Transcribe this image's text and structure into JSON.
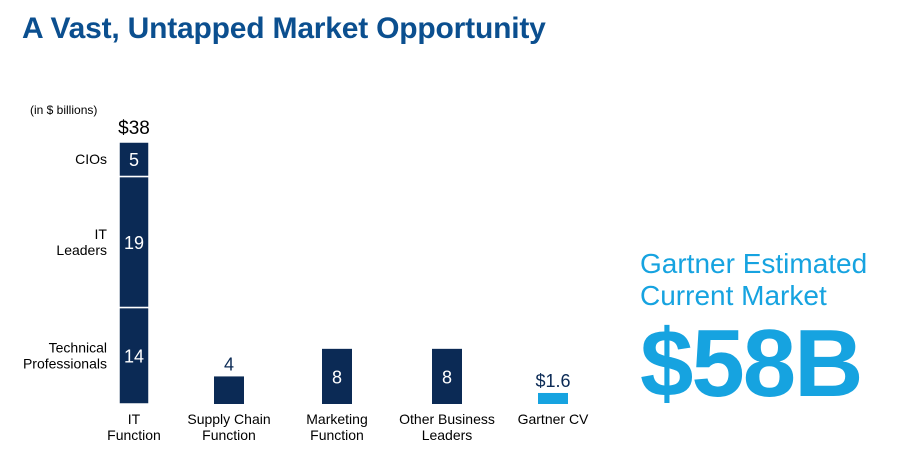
{
  "title": "A Vast, Untapped Market Opportunity",
  "unit_note": "(in $ billions)",
  "callout": {
    "label_line1": "Gartner Estimated",
    "label_line2": "Current Market",
    "value": "$58B"
  },
  "colors": {
    "title": "#0b4f8f",
    "bar_dark": "#0b2a55",
    "bar_light": "#16a3e0",
    "callout": "#16a3e0"
  },
  "chart_data": {
    "type": "bar",
    "stacked": true,
    "title": "",
    "xlabel": "",
    "ylabel": "(in $ billions)",
    "ylim": [
      0,
      38
    ],
    "categories": [
      {
        "label_lines": [
          "IT",
          "Function"
        ]
      },
      {
        "label_lines": [
          "Supply Chain",
          "Function"
        ]
      },
      {
        "label_lines": [
          "Marketing",
          "Function"
        ]
      },
      {
        "label_lines": [
          "Other Business",
          "Leaders"
        ]
      },
      {
        "label_lines": [
          "Gartner CV"
        ]
      }
    ],
    "bars": [
      {
        "total_label": "$38",
        "segments": [
          {
            "name_lines": [
              "Technical",
              "Professionals"
            ],
            "value": 14,
            "label": "14"
          },
          {
            "name_lines": [
              "IT",
              "Leaders"
            ],
            "value": 19,
            "label": "19"
          },
          {
            "name_lines": [
              "CIOs"
            ],
            "value": 5,
            "label": "5"
          }
        ]
      },
      {
        "segments": [
          {
            "value": 4,
            "label": "4",
            "label_position": "above"
          }
        ]
      },
      {
        "segments": [
          {
            "value": 8,
            "label": "8",
            "label_position": "inside"
          }
        ]
      },
      {
        "segments": [
          {
            "value": 8,
            "label": "8",
            "label_position": "inside"
          }
        ]
      },
      {
        "highlight": true,
        "segments": [
          {
            "value": 1.6,
            "label": "$1.6",
            "label_position": "above"
          }
        ]
      }
    ]
  }
}
